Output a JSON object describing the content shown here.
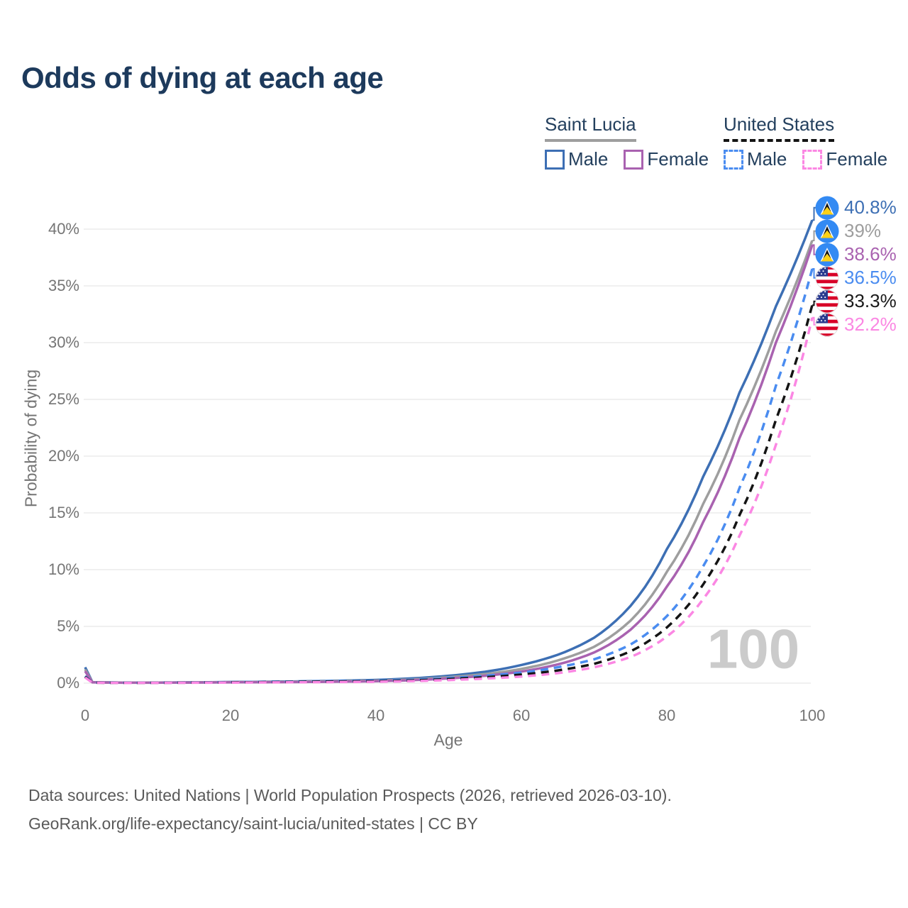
{
  "title": "Odds of dying at each age",
  "watermark_age": "100",
  "legend": {
    "groups": [
      {
        "name": "Saint Lucia",
        "underline_color": "#9e9e9e",
        "underline_style": "solid",
        "items": [
          {
            "label": "Male",
            "color": "#3d6fb4",
            "style": "solid"
          },
          {
            "label": "Female",
            "color": "#a962b0",
            "style": "solid"
          }
        ]
      },
      {
        "name": "United States",
        "underline_color": "#141414",
        "underline_style": "dashed",
        "items": [
          {
            "label": "Male",
            "color": "#4a8cf0",
            "style": "dashed"
          },
          {
            "label": "Female",
            "color": "#fb87e3",
            "style": "dashed"
          }
        ]
      }
    ]
  },
  "chart_data": {
    "type": "line",
    "title": "Odds of dying at each age",
    "xlabel": "Age",
    "ylabel": "Probability of dying",
    "x_ticks": [
      0,
      20,
      40,
      60,
      80,
      100
    ],
    "y_ticks": [
      "0%",
      "5%",
      "10%",
      "15%",
      "20%",
      "25%",
      "30%",
      "35%",
      "40%"
    ],
    "xlim": [
      0,
      100
    ],
    "ylim_pct": [
      0,
      42.5
    ],
    "grid": "horizontal",
    "units": "percent",
    "ages": [
      0,
      1,
      5,
      10,
      20,
      30,
      40,
      45,
      50,
      55,
      60,
      65,
      70,
      75,
      80,
      85,
      90,
      95,
      100
    ],
    "series": [
      {
        "name": "Saint Lucia Male",
        "color": "#3d6fb4",
        "dash": "solid",
        "flag": "saint-lucia",
        "end_label": "40.8%",
        "label_color": "#3d6fb4",
        "values": [
          1.4,
          0.09,
          0.05,
          0.05,
          0.1,
          0.16,
          0.28,
          0.42,
          0.65,
          1.0,
          1.6,
          2.5,
          4.0,
          6.8,
          11.8,
          18.2,
          25.6,
          33.2,
          40.8
        ]
      },
      {
        "name": "Saint Lucia",
        "color": "#9e9e9e",
        "dash": "solid",
        "flag": "saint-lucia",
        "end_label": "39%",
        "label_color": "#9e9e9e",
        "values": [
          1.2,
          0.08,
          0.045,
          0.045,
          0.085,
          0.13,
          0.22,
          0.33,
          0.52,
          0.8,
          1.25,
          2.0,
          3.2,
          5.5,
          9.8,
          15.8,
          23.2,
          31.0,
          39.0
        ]
      },
      {
        "name": "Saint Lucia Female",
        "color": "#a962b0",
        "dash": "solid",
        "flag": "saint-lucia",
        "end_label": "38.6%",
        "label_color": "#a962b0",
        "values": [
          1.05,
          0.07,
          0.04,
          0.04,
          0.07,
          0.1,
          0.17,
          0.26,
          0.42,
          0.65,
          1.02,
          1.65,
          2.7,
          4.7,
          8.5,
          14.2,
          21.6,
          30.0,
          38.6
        ]
      },
      {
        "name": "United States Male",
        "color": "#4a8cf0",
        "dash": "dashed",
        "flag": "us",
        "end_label": "36.5%",
        "label_color": "#4a8cf0",
        "values": [
          0.62,
          0.05,
          0.03,
          0.035,
          0.09,
          0.15,
          0.22,
          0.3,
          0.45,
          0.65,
          0.92,
          1.4,
          2.1,
          3.4,
          5.9,
          10.3,
          17.2,
          26.2,
          36.5
        ]
      },
      {
        "name": "United States",
        "color": "#141414",
        "dash": "dashed",
        "flag": "us",
        "end_label": "33.3%",
        "label_color": "#1a1a1a",
        "values": [
          0.56,
          0.045,
          0.025,
          0.03,
          0.07,
          0.12,
          0.17,
          0.24,
          0.36,
          0.52,
          0.75,
          1.12,
          1.7,
          2.8,
          4.9,
          8.7,
          14.8,
          23.2,
          33.3
        ]
      },
      {
        "name": "United States Female",
        "color": "#fb87e3",
        "dash": "dashed",
        "flag": "us",
        "end_label": "32.2%",
        "label_color": "#fb87e3",
        "values": [
          0.5,
          0.04,
          0.02,
          0.025,
          0.05,
          0.08,
          0.12,
          0.18,
          0.27,
          0.4,
          0.58,
          0.88,
          1.4,
          2.3,
          4.1,
          7.4,
          13.0,
          21.0,
          32.2
        ]
      }
    ]
  },
  "footer": {
    "line1": "Data sources: United Nations | World Population Prospects (2026, retrieved 2026-03-10).",
    "line2": "GeoRank.org/life-expectancy/saint-lucia/united-states | CC BY"
  }
}
